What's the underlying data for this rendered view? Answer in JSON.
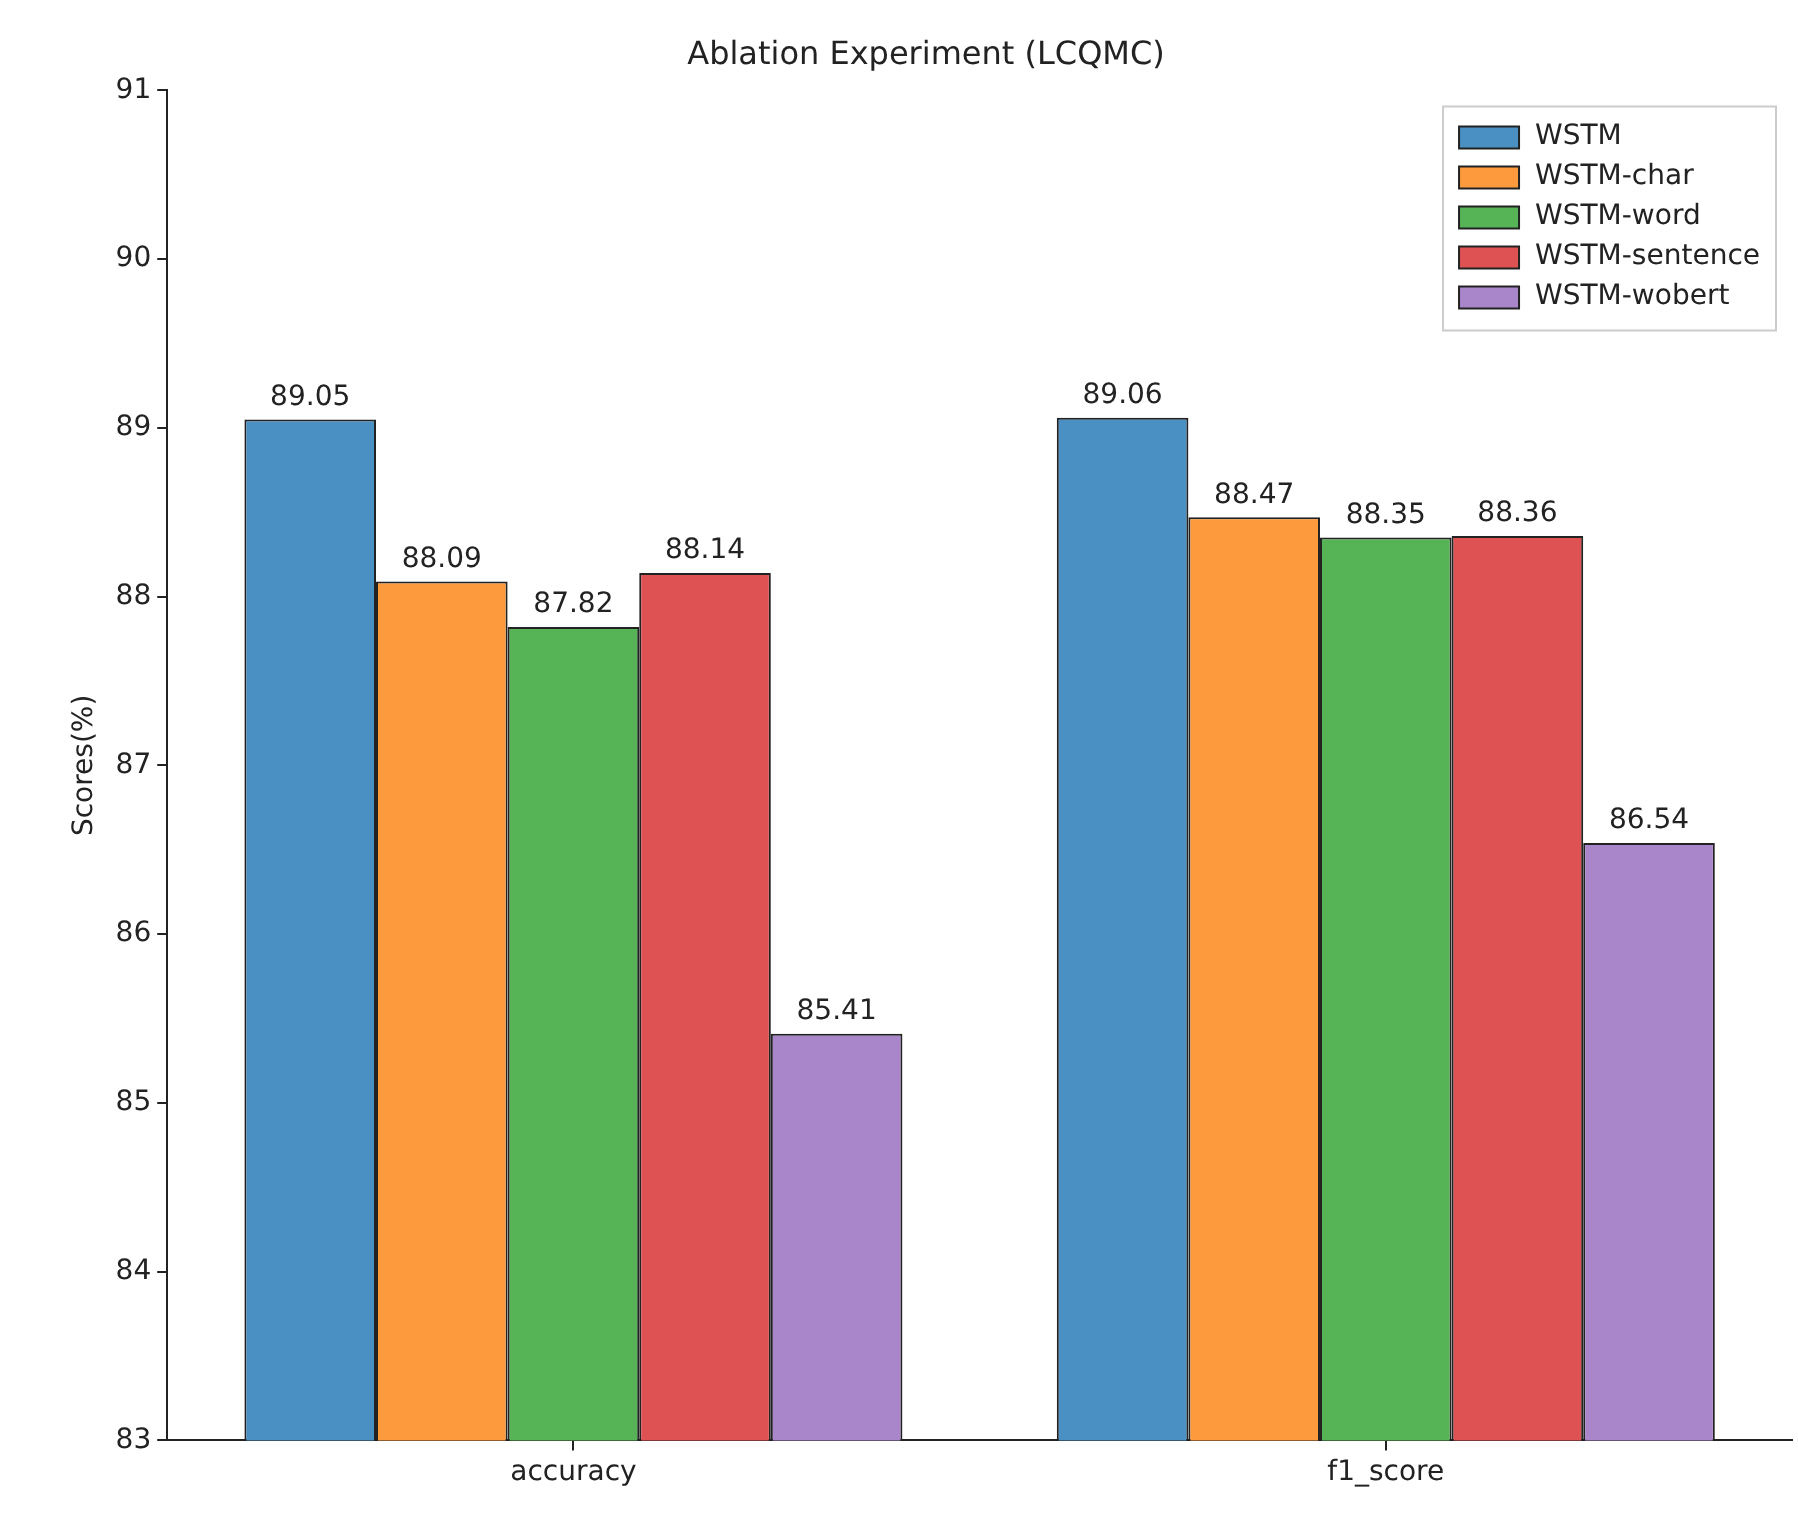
{
  "chart_data": {
    "type": "bar",
    "title": "Ablation Experiment (LCQMC)",
    "ylabel": "Scores(%)",
    "categories": [
      "accuracy",
      "f1_score"
    ],
    "series": [
      {
        "name": "WSTM",
        "color": "#4a90c2",
        "values": [
          89.05,
          89.06
        ]
      },
      {
        "name": "WSTM-char",
        "color": "#fd9a3e",
        "values": [
          88.09,
          88.47
        ]
      },
      {
        "name": "WSTM-word",
        "color": "#56b356",
        "values": [
          87.82,
          88.35
        ]
      },
      {
        "name": "WSTM-sentence",
        "color": "#de5253",
        "values": [
          88.14,
          88.36
        ]
      },
      {
        "name": "WSTM-wobert",
        "color": "#a986ca",
        "values": [
          85.41,
          86.54
        ]
      }
    ],
    "ylim": [
      83,
      91
    ],
    "yticks": [
      83,
      84,
      85,
      86,
      87,
      88,
      89,
      90,
      91
    ],
    "grid": false,
    "legend": "top right",
    "data_labels": true
  }
}
